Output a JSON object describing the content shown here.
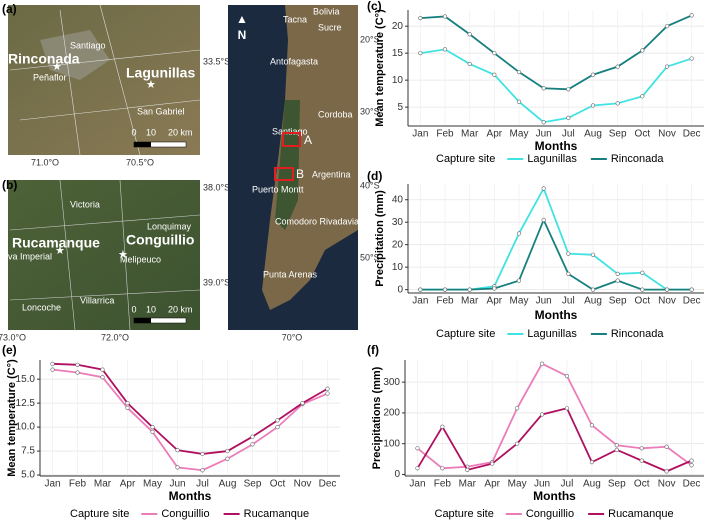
{
  "maps": {
    "a": {
      "panel": "(a)",
      "sites": [
        "Rinconada",
        "Lagunillas"
      ],
      "towns": [
        "Santiago",
        "Peñaflor",
        "San Gabriel"
      ],
      "lat": [
        "33.5°S"
      ],
      "lon": [
        "71.0°O",
        "70.5°O"
      ],
      "scale": [
        "0",
        "10",
        "20 km"
      ]
    },
    "b": {
      "panel": "(b)",
      "sites": [
        "Rucamanque",
        "Conguillio"
      ],
      "towns": [
        "Victoria",
        "Lonquimay",
        "va Imperial",
        "Melipeuco",
        "Villarrica",
        "Loncoche"
      ],
      "lat": [
        "38.0°S",
        "39.0°S"
      ],
      "lon": [
        "73.0°O",
        "72.0°O"
      ],
      "scale": [
        "0",
        "10",
        "20 km"
      ]
    },
    "overview": {
      "north": "N",
      "places": [
        "Bolivia",
        "Tacna",
        "Sucre",
        "Antofagasta",
        "Cordoba",
        "Santiago",
        "Argentina",
        "Puerto Montt",
        "Comodoro Rivadavia",
        "Punta Arenas"
      ],
      "boxes": [
        "A",
        "B"
      ],
      "lat": [
        "20°S",
        "30°S",
        "40°S",
        "50°S"
      ],
      "lon": [
        "70°O"
      ]
    }
  },
  "chart_data": [
    {
      "type": "line",
      "panel": "(c)",
      "y_label": "Mean temperature (C°)",
      "x_label": "Months",
      "legend_title": "Capture site",
      "categories": [
        "Jan",
        "Feb",
        "Mar",
        "Apr",
        "May",
        "Jun",
        "Jul",
        "Aug",
        "Sep",
        "Oct",
        "Nov",
        "Dec"
      ],
      "ylim": [
        1.5,
        23
      ],
      "yticks": [
        5,
        10,
        15,
        20
      ],
      "grid": true,
      "series": [
        {
          "name": "Lagunillas",
          "color": "#3fe3e3",
          "values": [
            15,
            15.7,
            13,
            11,
            6,
            2.2,
            3,
            5.3,
            5.7,
            7,
            12.5,
            14
          ]
        },
        {
          "name": "Rinconada",
          "color": "#17807e",
          "values": [
            21.5,
            21.8,
            18.5,
            15,
            11.5,
            8.5,
            8.3,
            11,
            12.5,
            15.5,
            20,
            22
          ]
        }
      ]
    },
    {
      "type": "line",
      "panel": "(d)",
      "y_label": "Precipitation (mm)",
      "x_label": "Months",
      "legend_title": "Capture site",
      "categories": [
        "Jan",
        "Feb",
        "Mar",
        "Apr",
        "May",
        "Jun",
        "Jul",
        "Aug",
        "Sep",
        "Oct",
        "Nov",
        "Dec"
      ],
      "ylim": [
        -1.5,
        47
      ],
      "yticks": [
        0,
        10,
        20,
        30,
        40
      ],
      "grid": true,
      "series": [
        {
          "name": "Lagunillas",
          "color": "#3fe3e3",
          "values": [
            0,
            0,
            0,
            1.5,
            25,
            45,
            16,
            15.5,
            7,
            7.5,
            0,
            0
          ]
        },
        {
          "name": "Rinconada",
          "color": "#17807e",
          "values": [
            0,
            0,
            0,
            0.5,
            4,
            31,
            7,
            0,
            4,
            0,
            0,
            0
          ]
        }
      ]
    },
    {
      "type": "line",
      "panel": "(e)",
      "y_label": "Mean temperature (C°)",
      "x_label": "Months",
      "legend_title": "Capture site",
      "categories": [
        "Jan",
        "Feb",
        "Mar",
        "Apr",
        "May",
        "Jun",
        "Jul",
        "Aug",
        "Sep",
        "Oct",
        "Nov",
        "Dec"
      ],
      "ylim": [
        4.9,
        17
      ],
      "yticks": [
        {
          "value": 5,
          "label": "5.0"
        },
        {
          "value": 7.5,
          "label": "7.5"
        },
        {
          "value": 10,
          "label": "10.0"
        },
        {
          "value": 12.5,
          "label": "12.5"
        },
        {
          "value": 15,
          "label": "15.0"
        }
      ],
      "grid": true,
      "series": [
        {
          "name": "Conguillio",
          "color": "#ec7cb9",
          "values": [
            16,
            15.7,
            15.2,
            12,
            9.5,
            5.8,
            5.5,
            6.7,
            8.2,
            10,
            12.4,
            13.5
          ]
        },
        {
          "name": "Rucamanque",
          "color": "#b0105f",
          "values": [
            16.6,
            16.5,
            16,
            12.5,
            10,
            7.6,
            7.2,
            7.5,
            9,
            10.7,
            12.5,
            14
          ]
        }
      ]
    },
    {
      "type": "line",
      "panel": "(f)",
      "y_label": "Precipitations (mm)",
      "x_label": "Months",
      "legend_title": "Capture site",
      "categories": [
        "Jan",
        "Feb",
        "Mar",
        "Apr",
        "May",
        "Jun",
        "Jul",
        "Aug",
        "Sep",
        "Oct",
        "Nov",
        "Dec"
      ],
      "ylim": [
        -5,
        372
      ],
      "yticks": [
        0,
        100,
        200,
        300
      ],
      "grid": true,
      "series": [
        {
          "name": "Conguillio",
          "color": "#ec7cb9",
          "values": [
            85,
            20,
            25,
            40,
            215,
            360,
            320,
            160,
            95,
            85,
            90,
            30
          ]
        },
        {
          "name": "Rucamanque",
          "color": "#b0105f",
          "values": [
            20,
            155,
            15,
            35,
            100,
            195,
            215,
            40,
            80,
            45,
            10,
            45
          ]
        }
      ]
    }
  ]
}
